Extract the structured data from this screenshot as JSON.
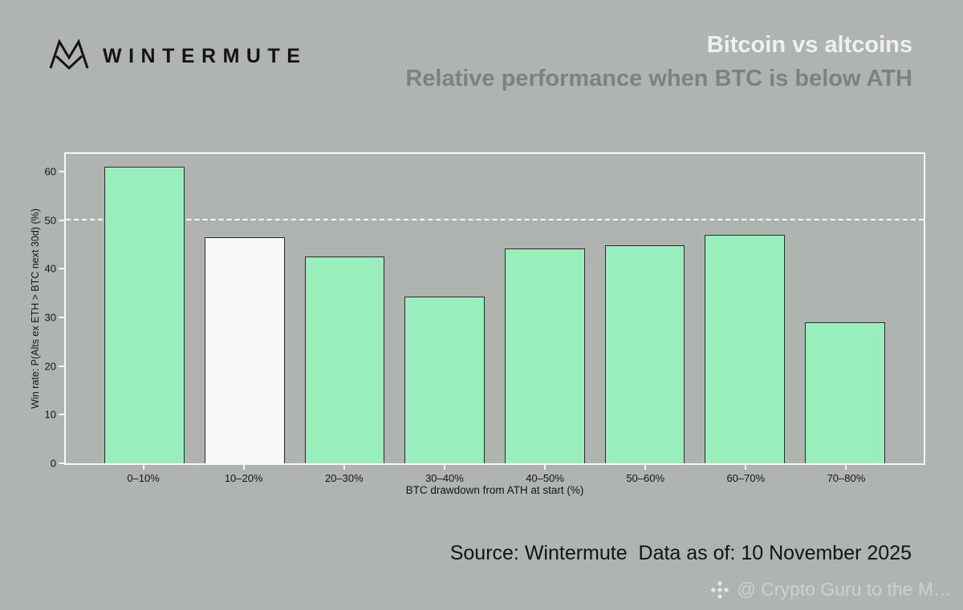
{
  "page": {
    "background": "#b0b4b1"
  },
  "header": {
    "brand": "WINTERMUTE",
    "title": "Bitcoin vs altcoins",
    "subtitle": "Relative performance when BTC is below ATH"
  },
  "chart_data": {
    "type": "bar",
    "categories": [
      "0–10%",
      "10–20%",
      "20–30%",
      "30–40%",
      "40–50%",
      "50–60%",
      "60–70%",
      "70–80%"
    ],
    "values": [
      61,
      46.5,
      42.5,
      34.3,
      44.2,
      44.9,
      47,
      29
    ],
    "xlabel": "BTC drawdown from ATH at start (%)",
    "ylabel": "Win rate: P(Alts ex ETH > BTC next 30d) (%)",
    "ylim": [
      0,
      63.6
    ],
    "yticks": [
      0,
      10,
      20,
      30,
      40,
      50,
      60
    ],
    "reference_line": 50,
    "bar_color": "#99efbc",
    "highlight_index": 1,
    "highlight_color": "#f7f9f7",
    "grid": false,
    "legend": "none"
  },
  "footer": {
    "source": "Source: Wintermute  Data as of: 10 November 2025",
    "watermark": "@ Crypto Guru to the M…"
  }
}
